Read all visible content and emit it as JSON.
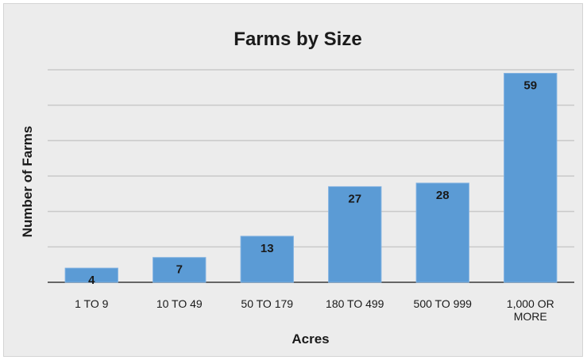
{
  "chart_data": {
    "type": "bar",
    "title": "Farms by Size",
    "xlabel": "Acres",
    "ylabel": "Number of Farms",
    "categories": [
      [
        "1 TO 9"
      ],
      [
        "10 TO 49"
      ],
      [
        "50 TO 179"
      ],
      [
        "180 TO 499"
      ],
      [
        "500 TO 999"
      ],
      [
        "1,000 OR",
        "MORE"
      ]
    ],
    "values": [
      4,
      7,
      13,
      27,
      28,
      59
    ],
    "data_labels": [
      "4",
      "7",
      "13",
      "27",
      "28",
      "59"
    ],
    "ylim": [
      0,
      60
    ],
    "y_gridline_step": 10,
    "grid": true,
    "y_tick_labels_shown": false,
    "legend": "none",
    "colors": {
      "bar": "#5b9bd5",
      "background": "#ececec",
      "gridline": "#c9c9c9"
    }
  }
}
